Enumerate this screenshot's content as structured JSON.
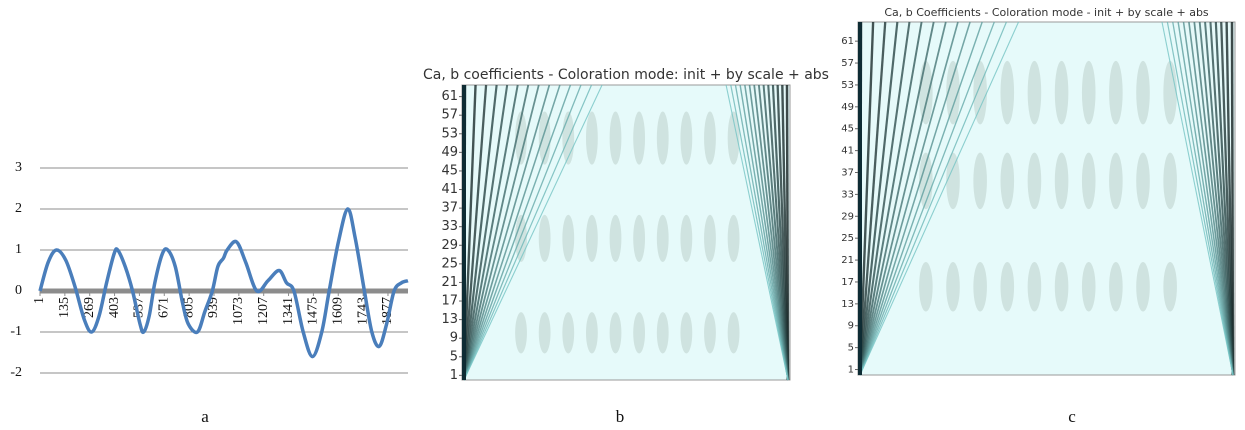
{
  "chart_data": [
    {
      "type": "line",
      "caption": "a",
      "color": "#4a7ebb",
      "x": [
        1,
        45,
        90,
        140,
        190,
        240,
        280,
        320,
        360,
        400,
        420,
        460,
        500,
        540,
        560,
        590,
        620,
        660,
        690,
        730,
        770,
        800,
        850,
        890,
        930,
        960,
        990,
        1010,
        1060,
        1110,
        1170,
        1230,
        1290,
        1330,
        1370,
        1420,
        1470,
        1520,
        1560,
        1610,
        1660,
        1700,
        1750,
        1790,
        1830,
        1870,
        1910,
        1950,
        1985
      ],
      "values": [
        0,
        0.7,
        1,
        0.75,
        0.1,
        -0.7,
        -1,
        -0.6,
        0.2,
        0.9,
        1,
        0.6,
        0,
        -0.8,
        -1,
        -0.6,
        0.2,
        0.9,
        1,
        0.6,
        -0.3,
        -0.8,
        -1,
        -0.5,
        0,
        0.6,
        0.8,
        1,
        1.2,
        0.7,
        0,
        0.25,
        0.5,
        0.2,
        0,
        -1,
        -1.6,
        -1,
        0,
        1.2,
        2,
        1.3,
        0,
        -1,
        -1.35,
        -0.8,
        0,
        0.2,
        0.25
      ],
      "xlim": [
        1,
        1985
      ],
      "xticks": [
        1,
        135,
        269,
        403,
        537,
        671,
        805,
        939,
        1073,
        1207,
        1341,
        1475,
        1609,
        1743,
        1877
      ],
      "ylim": [
        -2,
        3
      ],
      "yticks": [
        -2,
        -1,
        0,
        1,
        2,
        3
      ],
      "grid": true
    },
    {
      "type": "heatmap",
      "caption": "b",
      "title": "Ca, b coefficients - Coloration mode: init + by scale + abs",
      "ylim": [
        0,
        63.5
      ],
      "yticks": [
        1,
        5,
        9,
        13,
        17,
        21,
        25,
        29,
        33,
        37,
        41,
        45,
        49,
        53,
        57,
        61
      ]
    },
    {
      "type": "heatmap",
      "caption": "c",
      "title": "Ca, b Coefficients - Coloration mode - init + by scale + abs",
      "ylim": [
        0,
        64.5
      ],
      "yticks": [
        1,
        5,
        9,
        13,
        17,
        21,
        25,
        29,
        33,
        37,
        41,
        45,
        49,
        53,
        57,
        61
      ]
    }
  ]
}
